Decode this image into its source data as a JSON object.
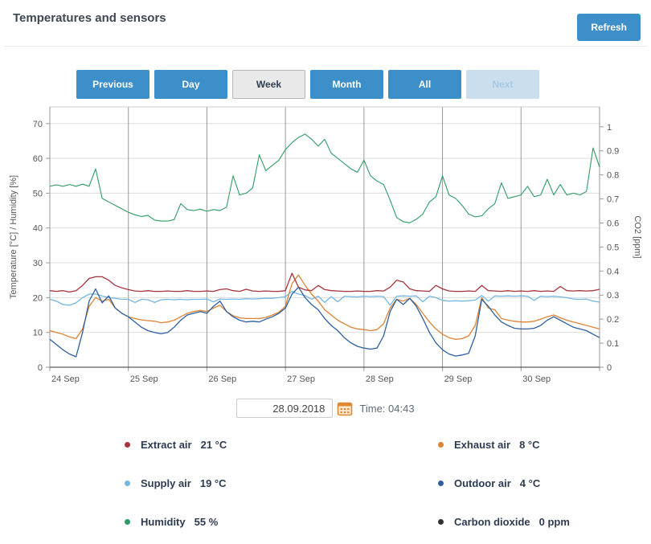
{
  "header": {
    "title": "Temperatures and sensors",
    "refresh_label": "Refresh"
  },
  "toolbar": {
    "buttons": [
      {
        "label": "Previous",
        "state": "normal"
      },
      {
        "label": "Day",
        "state": "normal"
      },
      {
        "label": "Week",
        "state": "active"
      },
      {
        "label": "Month",
        "state": "normal"
      },
      {
        "label": "All",
        "state": "normal"
      },
      {
        "label": "Next",
        "state": "disabled"
      }
    ]
  },
  "datebar": {
    "date_value": "28.09.2018",
    "time_label": "Time: 04:43"
  },
  "legend": {
    "items": [
      {
        "name": "Extract air",
        "value_text": "21 °C",
        "color": "#a7333d"
      },
      {
        "name": "Exhaust air",
        "value_text": "8 °C",
        "color": "#dc8335"
      },
      {
        "name": "Supply air",
        "value_text": "19 °C",
        "color": "#74b7e2"
      },
      {
        "name": "Outdoor air",
        "value_text": "4 °C",
        "color": "#2e609f"
      },
      {
        "name": "Humidity",
        "value_text": "55 %",
        "color": "#2e9c66"
      },
      {
        "name": "Carbon dioxide",
        "value_text": "0 ppm",
        "color": "#333333"
      }
    ]
  },
  "chart_data": {
    "type": "line",
    "title": "",
    "grid": true,
    "x_axis": {
      "labels": [
        "24 Sep",
        "25 Sep",
        "26 Sep",
        "27 Sep",
        "28 Sep",
        "29 Sep",
        "30 Sep"
      ]
    },
    "y_left": {
      "label": "Temperature [°C] / Humidity [%]",
      "ticks": [
        0,
        10,
        20,
        30,
        40,
        50,
        60,
        70
      ],
      "plot_max": 74.8
    },
    "y_right": {
      "label": "CO2 [ppm]",
      "ticks": [
        0,
        0.1,
        0.2,
        0.3,
        0.4,
        0.5,
        0.6,
        0.7,
        0.8,
        0.9,
        1
      ],
      "plot_max": 1.083
    },
    "series": [
      {
        "name": "Carbon dioxide",
        "axis": "right",
        "color": "#333333",
        "width": 1,
        "values": [
          0,
          0
        ]
      },
      {
        "name": "Humidity",
        "axis": "left",
        "color": "#2e9c66",
        "width": 1.1,
        "values": [
          52,
          52.4,
          52,
          52.5,
          52,
          52.6,
          52,
          57,
          48.5,
          47.5,
          46.5,
          45.5,
          44.5,
          43.8,
          43.3,
          43.6,
          42.3,
          42,
          42,
          42.4,
          47,
          45.3,
          45,
          45.4,
          44.8,
          45.3,
          45,
          46,
          55,
          49.5,
          50,
          51.5,
          61,
          56.5,
          58,
          59.5,
          62.5,
          64.5,
          66,
          67,
          65.5,
          63.5,
          65.5,
          61.5,
          60,
          58.5,
          57,
          56,
          59.5,
          55,
          53.5,
          52.5,
          48,
          43,
          41.8,
          41.5,
          42.5,
          44,
          47.5,
          49,
          55,
          49.5,
          48.5,
          46.5,
          44,
          43.2,
          43.5,
          45.5,
          47,
          53,
          48.5,
          49,
          49.5,
          52,
          49,
          49.5,
          54,
          49.5,
          52.5,
          49.5,
          50,
          49.5,
          50.5,
          63,
          57.5
        ]
      },
      {
        "name": "Supply air",
        "axis": "left",
        "color": "#74b7e2",
        "width": 1.3,
        "values": [
          19.5,
          19,
          18,
          17.8,
          18.5,
          20,
          21,
          21,
          20.5,
          20,
          19.8,
          19.5,
          19.5,
          18.6,
          19.5,
          19.4,
          18.6,
          19.4,
          19.5,
          19.4,
          19.5,
          19.4,
          19.5,
          19.5,
          19.6,
          18.8,
          19.6,
          19.5,
          19.6,
          19.5,
          19.7,
          19.6,
          19.7,
          19.8,
          19.8,
          20,
          20.3,
          21.8,
          21,
          20.6,
          19.5,
          20.4,
          18.6,
          20.3,
          18.8,
          20.4,
          20.3,
          20.2,
          20.4,
          20.3,
          20.4,
          20.3,
          17.8,
          20.4,
          20.5,
          20.4,
          20.5,
          18.8,
          20.4,
          20,
          19.2,
          19,
          19.1,
          19,
          19.1,
          19.3,
          20.6,
          19,
          20.5,
          20.4,
          20.5,
          20.4,
          20.5,
          20.4,
          19.2,
          20.4,
          20.3,
          20.4,
          20.2,
          20,
          19.6,
          19.5,
          19.6,
          19,
          18.7
        ]
      },
      {
        "name": "Exhaust air",
        "axis": "left",
        "color": "#dc8335",
        "width": 1.3,
        "values": [
          10.5,
          10,
          9.5,
          8.7,
          8.2,
          11,
          17.5,
          20,
          19,
          19.5,
          17,
          15.5,
          14.5,
          14,
          13.6,
          13.4,
          13.2,
          12.8,
          13,
          13.5,
          14.5,
          15.5,
          16,
          16.3,
          16,
          17,
          17.8,
          16,
          14.8,
          14.2,
          14,
          14,
          14,
          14.3,
          15,
          15.8,
          17.5,
          24,
          26.5,
          23.5,
          21,
          19,
          16.5,
          15,
          13.5,
          12.5,
          11.5,
          11,
          10.8,
          10.5,
          10.8,
          12.5,
          17,
          19.5,
          19,
          19.8,
          18,
          15.5,
          13,
          11,
          9.5,
          8.5,
          8,
          8.2,
          9,
          12,
          20,
          17,
          16.5,
          14,
          13.5,
          13.2,
          13,
          13,
          13.2,
          13.8,
          14.5,
          15,
          14.2,
          13.5,
          13,
          12.5,
          12,
          11.5,
          11
        ]
      },
      {
        "name": "Outdoor air",
        "axis": "left",
        "color": "#2e609f",
        "width": 1.3,
        "values": [
          8,
          6.5,
          5,
          3.8,
          3,
          10,
          19,
          22.5,
          18.5,
          20.5,
          17,
          15.5,
          14.5,
          13,
          11.5,
          10.5,
          10,
          9.6,
          10,
          11.5,
          13.5,
          15,
          15.5,
          16,
          15.5,
          17.5,
          19,
          16,
          14.5,
          13.5,
          13,
          13.2,
          13,
          13.8,
          14.5,
          15.5,
          17,
          21,
          23,
          20,
          18,
          16.5,
          14,
          12,
          10.5,
          8.5,
          7,
          6,
          5.5,
          5.2,
          5.5,
          9,
          16,
          19.5,
          18,
          19.8,
          17.5,
          14,
          10,
          7,
          5,
          3.8,
          3.2,
          3.5,
          4,
          9,
          19.5,
          17.5,
          15,
          13,
          12,
          11.2,
          11,
          11,
          11.2,
          12,
          13.5,
          14.5,
          13.5,
          12.5,
          11.5,
          11,
          10.5,
          9.5,
          8.5
        ]
      },
      {
        "name": "Extract air",
        "axis": "left",
        "color": "#a7333d",
        "width": 1.3,
        "values": [
          22,
          21.8,
          22,
          21.6,
          22,
          23.5,
          25.5,
          26,
          26,
          25,
          23.5,
          22.8,
          22.3,
          21.9,
          21.8,
          22,
          21.8,
          21.8,
          21.9,
          21.8,
          21.8,
          22,
          21.8,
          21.8,
          21.9,
          21.8,
          22.3,
          22.5,
          22,
          21.8,
          22.4,
          21.9,
          21.8,
          21.9,
          21.8,
          21.8,
          22,
          27,
          23,
          22.2,
          22,
          23.5,
          22.3,
          22,
          21.9,
          21.8,
          21.8,
          21.9,
          21.8,
          21.8,
          22,
          21.9,
          23,
          25,
          24.5,
          22.5,
          22,
          21.9,
          21.8,
          23.5,
          22.5,
          21.9,
          21.8,
          21.8,
          21.9,
          21.8,
          23.5,
          22,
          21.9,
          21.8,
          22,
          21.8,
          21.9,
          21.8,
          22,
          21.8,
          21.9,
          21.8,
          23.2,
          22,
          21.9,
          22,
          21.9,
          22,
          22.4
        ]
      }
    ]
  }
}
